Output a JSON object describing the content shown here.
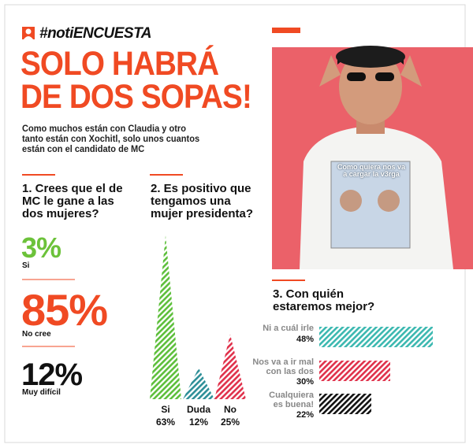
{
  "header": {
    "hashtag": "#notiENCUESTA",
    "title": "SOLO HABRÁ\nDE DOS SOPAS!",
    "subtitle": "Como muchos están con Claudia y otro\ntanto están con Xochitl, solo unos cuantos\nestán con el candidato de MC"
  },
  "photo": {
    "shirt_text": "Como quiera nos va\na cargar la v3rga"
  },
  "question1": {
    "title": "1. Crees que el de\nMC le gane a las\ndos mujeres?",
    "answers": [
      {
        "value": "3%",
        "label": "Si",
        "color": "#6cc23a"
      },
      {
        "value": "85%",
        "label": "No cree",
        "color": "#f04a23"
      },
      {
        "value": "12%",
        "label": "Muy difícil",
        "color": "#111111"
      }
    ]
  },
  "chart_data": [
    {
      "type": "triangle",
      "title": "2. Es positivo que\ntengamos una\nmujer presidenta?",
      "categories": [
        "Si",
        "Duda",
        "No"
      ],
      "values": [
        63,
        12,
        25
      ],
      "value_labels": [
        "63%",
        "12%",
        "25%"
      ],
      "colors": [
        "#5dbf3b",
        "#2e8f98",
        "#e0314b"
      ]
    },
    {
      "type": "bar",
      "title": "3. Con quién\nestaremos mejor?",
      "categories": [
        "Ni a cuál irle",
        "Nos va a ir mal\ncon las dos",
        "Cualquiera\nes buena!"
      ],
      "values": [
        48,
        30,
        22
      ],
      "value_labels": [
        "48%",
        "30%",
        "22%"
      ],
      "colors": [
        "#3bb8b0",
        "#e0314b",
        "#111111"
      ]
    }
  ]
}
